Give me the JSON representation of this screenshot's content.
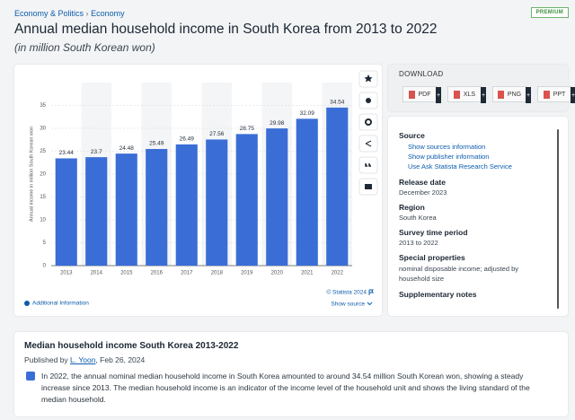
{
  "breadcrumb": {
    "parent": "Economy & Politics",
    "separator": "›",
    "current": "Economy"
  },
  "badge": "PREMIUM",
  "title": "Annual median household income in South Korea from 2013 to 2022",
  "subtitle": "(in million South Korean won)",
  "chart_data": {
    "type": "bar",
    "y_label": "Annual income in million South Korean won",
    "categories": [
      "2013",
      "2014",
      "2015",
      "2016",
      "2017",
      "2018",
      "2019",
      "2020",
      "2021",
      "2022"
    ],
    "values": [
      23.44,
      23.7,
      24.48,
      25.49,
      26.49,
      27.56,
      28.75,
      29.98,
      32.09,
      34.54
    ],
    "color": "#3a6ed6",
    "ylim": [
      0,
      40
    ],
    "yticks": [
      0,
      5,
      10,
      15,
      20,
      25,
      30,
      35
    ],
    "grid": true
  },
  "chart_footer": {
    "copyright": "© Statista 2024",
    "additional_info": "Additional Information",
    "show_source": "Show source"
  },
  "download": {
    "heading": "DOWNLOAD",
    "formats": [
      "PDF",
      "XLS",
      "PNG",
      "PPT"
    ]
  },
  "details": {
    "source": {
      "label": "Source",
      "links": [
        "Show sources information",
        "Show publisher information",
        "Use Ask Statista Research Service"
      ]
    },
    "release_date": {
      "label": "Release date",
      "value": "December 2023"
    },
    "region": {
      "label": "Region",
      "value": "South Korea"
    },
    "survey_period": {
      "label": "Survey time period",
      "value": "2013 to 2022"
    },
    "special": {
      "label": "Special properties",
      "value": "nominal disposable income; adjusted by household size"
    },
    "notes": {
      "label": "Supplementary notes"
    }
  },
  "description": {
    "title": "Median household income South Korea 2013-2022",
    "published_prefix": "Published by",
    "author": "L. Yoon",
    "date": ", Feb 26, 2024",
    "text": "In 2022, the annual nominal median household income in South Korea amounted to around 34.54 million South Korean won, showing a steady increase since 2013. The median household income is an indicator of the income level of the household unit and shows the living standard of the median household."
  }
}
